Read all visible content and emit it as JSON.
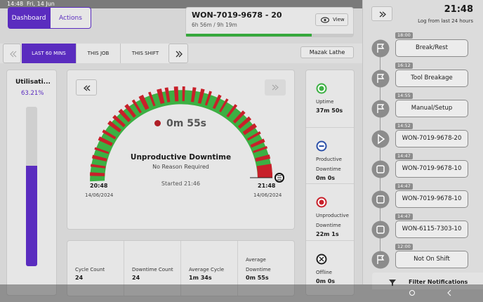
{
  "status_bar": {
    "time": "14:48",
    "date": "Fri, 14 Jun"
  },
  "tabs": [
    "Dashboard",
    "Actions"
  ],
  "job": {
    "title": "WON-7019-9678 - 20",
    "progress": "6h 56m / 9h 19m",
    "view": "View"
  },
  "ranges": [
    "LAST 60 MINS",
    "THIS JOB",
    "THIS SHIFT"
  ],
  "machine": "Mazak Lathe",
  "utilisation": {
    "label": "Utilisati...",
    "value": "63.21%"
  },
  "gauge": {
    "start_time": "20:48",
    "start_date": "14/06/2024",
    "end_time": "21:48",
    "end_date": "14/06/2024",
    "duration": "0m 55s",
    "state": "Unproductive Downtime",
    "reason": "No Reason Required",
    "started": "Started 21:46"
  },
  "stats": [
    {
      "label": "Cycle Count",
      "value": "24"
    },
    {
      "label": "Downtime Count",
      "value": "24"
    },
    {
      "label": "Average Cycle",
      "value": "1m 34s"
    },
    {
      "label": "Average Downtime",
      "value": "0m 55s"
    }
  ],
  "states": [
    {
      "label": "Uptime",
      "value": "37m 50s"
    },
    {
      "label": "Productive Downtime",
      "value": "0m 0s"
    },
    {
      "label": "Unproductive Downtime",
      "value": "22m 1s"
    },
    {
      "label": "Offline",
      "value": "0m 0s"
    }
  ],
  "log": {
    "time": "21:48",
    "subtitle": "Log from last 24 hours",
    "items": [
      {
        "time": "18:00",
        "label": "Break/Rest"
      },
      {
        "time": "16:12",
        "label": "Tool Breakage"
      },
      {
        "time": "14:55",
        "label": "Manual/Setup"
      },
      {
        "time": "14:52",
        "label": "WON-7019-9678-20"
      },
      {
        "time": "14:47",
        "label": "WON-7019-9678-10"
      },
      {
        "time": "14:47",
        "label": "WON-7019-9678-10"
      },
      {
        "time": "14:47",
        "label": "WON-6115-7303-10"
      },
      {
        "time": "12:00",
        "label": "Not On Shift"
      }
    ],
    "filter": "Filter Notifications"
  }
}
